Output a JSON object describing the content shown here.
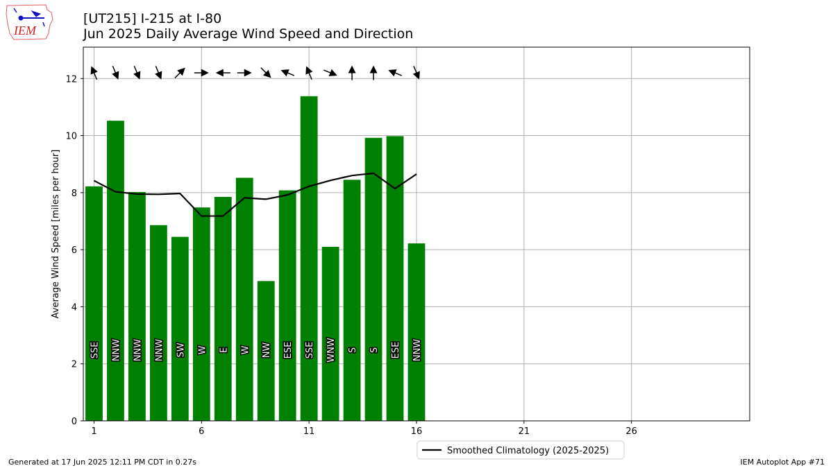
{
  "header": {
    "title_line1": "[UT215] I-215 at I-80",
    "title_line2": "Jun 2025 Daily Average Wind Speed and Direction",
    "logo_text": "IEM"
  },
  "footer": {
    "generated": "Generated at 17 Jun 2025 12:11 PM CDT in 0.27s",
    "app": "IEM Autoplot App #71"
  },
  "chart_data": {
    "type": "bar",
    "ylabel": "Average Wind Speed [miles per hour]",
    "xlabel": "",
    "xlim": [
      0.5,
      31.5
    ],
    "ylim": [
      0,
      13.1
    ],
    "xticks": [
      1,
      6,
      11,
      16,
      21,
      26
    ],
    "yticks": [
      0,
      2,
      4,
      6,
      8,
      10,
      12
    ],
    "grid": true,
    "legend_location": "bottom-center (below axes)",
    "colors": {
      "bars": "#008000",
      "climatology_line": "#000000",
      "grid": "#b0b0b0"
    },
    "days": [
      1,
      2,
      3,
      4,
      5,
      6,
      7,
      8,
      9,
      10,
      11,
      12,
      13,
      14,
      15,
      16
    ],
    "values": [
      8.22,
      10.52,
      8.02,
      6.86,
      6.45,
      7.48,
      7.85,
      8.52,
      4.9,
      8.08,
      11.38,
      6.1,
      8.45,
      9.92,
      9.98,
      6.22
    ],
    "directions": [
      "SSE",
      "NNW",
      "NNW",
      "NNW",
      "SW",
      "W",
      "E",
      "W",
      "NW",
      "ESE",
      "SSE",
      "WNW",
      "S",
      "S",
      "ESE",
      "NNW"
    ],
    "direction_degrees": [
      157.5,
      337.5,
      337.5,
      337.5,
      225,
      270,
      90,
      270,
      315,
      112.5,
      157.5,
      292.5,
      180,
      180,
      112.5,
      337.5
    ],
    "climatology": {
      "name": "Smoothed Climatology (2025-2025)",
      "values": [
        8.42,
        8.03,
        7.95,
        7.94,
        7.97,
        7.18,
        7.18,
        7.82,
        7.77,
        7.92,
        8.22,
        8.43,
        8.6,
        8.68,
        8.14,
        8.65
      ]
    }
  }
}
